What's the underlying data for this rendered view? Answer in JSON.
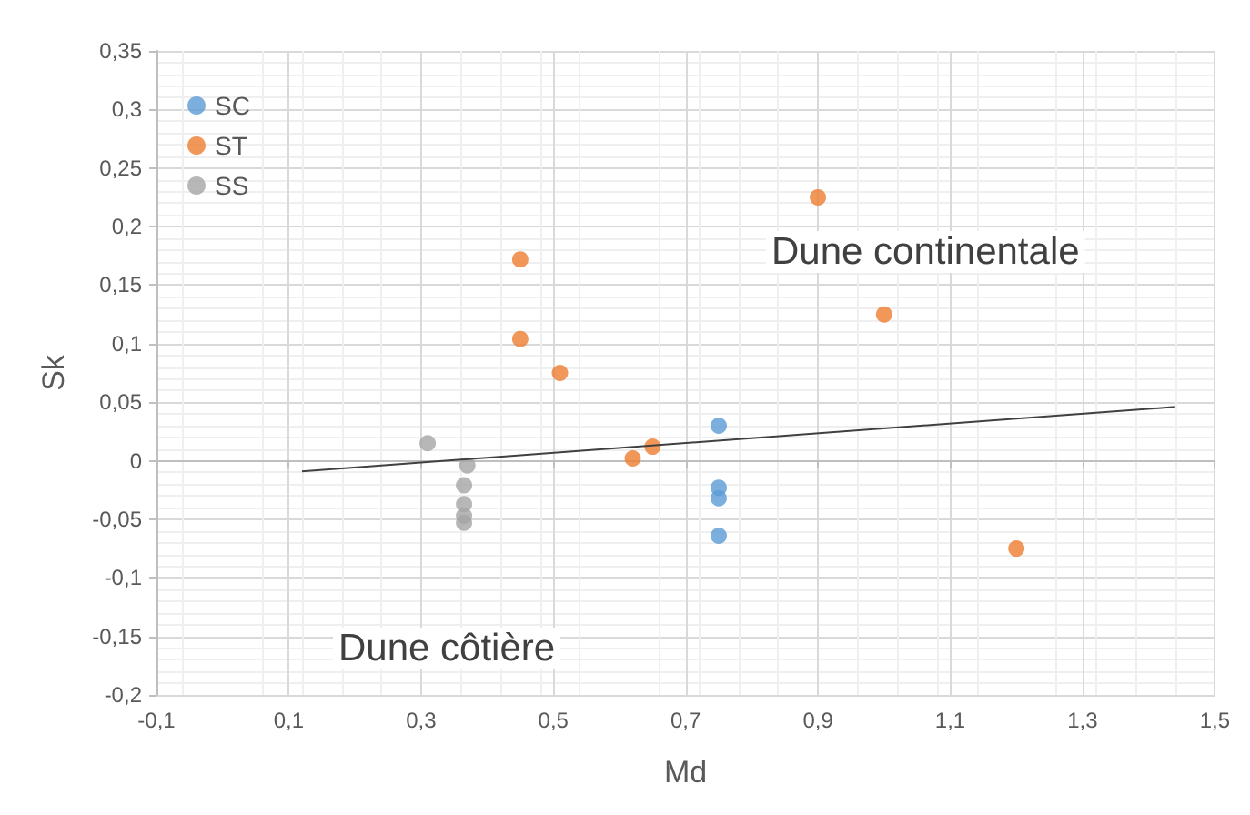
{
  "chart_data": {
    "type": "scatter",
    "xlabel": "Md",
    "ylabel": "Sk",
    "annotations": [
      "Dune continentale",
      "Dune côtière"
    ],
    "series": [
      {
        "name": "SC",
        "color": "#5b9bd5",
        "x": [
          0.75,
          0.75,
          0.75,
          0.75
        ],
        "values": [
          0.03,
          -0.023,
          -0.032,
          -0.064
        ]
      },
      {
        "name": "ST",
        "color": "#ed7d31",
        "x": [
          0.9,
          1.0,
          1.2,
          0.45,
          0.45,
          0.51,
          0.65,
          0.62
        ],
        "values": [
          0.225,
          0.125,
          -0.075,
          0.172,
          0.104,
          0.075,
          0.012,
          0.002
        ]
      },
      {
        "name": "SS",
        "color": "#a5a5a5",
        "x": [
          0.31,
          0.37,
          0.365,
          0.365,
          0.365,
          0.365
        ],
        "values": [
          0.015,
          -0.004,
          -0.021,
          -0.037,
          -0.047,
          -0.053
        ]
      },
      {
        "type": "line",
        "color": "#404040",
        "marker": "none",
        "x": [
          0.12,
          1.44
        ],
        "values": [
          -0.009,
          0.046
        ]
      }
    ],
    "marker": "circle",
    "legend": "top left",
    "grid": true,
    "xlim": [
      -0.1,
      1.5
    ],
    "xticks": [
      {
        "value": -0.1,
        "label": "-0,1"
      },
      {
        "value": 0.1,
        "label": "0,1"
      },
      {
        "value": 0.3,
        "label": "0,3"
      },
      {
        "value": 0.5,
        "label": "0,5"
      },
      {
        "value": 0.7,
        "label": "0,7"
      },
      {
        "value": 0.9,
        "label": "0,9"
      },
      {
        "value": 1.1,
        "label": "1,1"
      },
      {
        "value": 1.3,
        "label": "1,3"
      },
      {
        "value": 1.5,
        "label": "1,5"
      }
    ],
    "ylim": [
      -0.2,
      0.35
    ],
    "yticks": [
      {
        "value": -0.2,
        "label": "-0,2"
      },
      {
        "value": -0.15,
        "label": "-0,15"
      },
      {
        "value": -0.1,
        "label": "-0,1"
      },
      {
        "value": -0.05,
        "label": "-0,05"
      },
      0,
      {
        "value": 0.05,
        "label": "0,05"
      },
      {
        "value": 0.1,
        "label": "0,1"
      },
      {
        "value": 0.15,
        "label": "0,15"
      },
      {
        "value": 0.2,
        "label": "0,2"
      },
      {
        "value": 0.25,
        "label": "0,25"
      },
      {
        "value": 0.3,
        "label": "0,3"
      },
      {
        "value": 0.35,
        "label": "0,35"
      }
    ]
  }
}
